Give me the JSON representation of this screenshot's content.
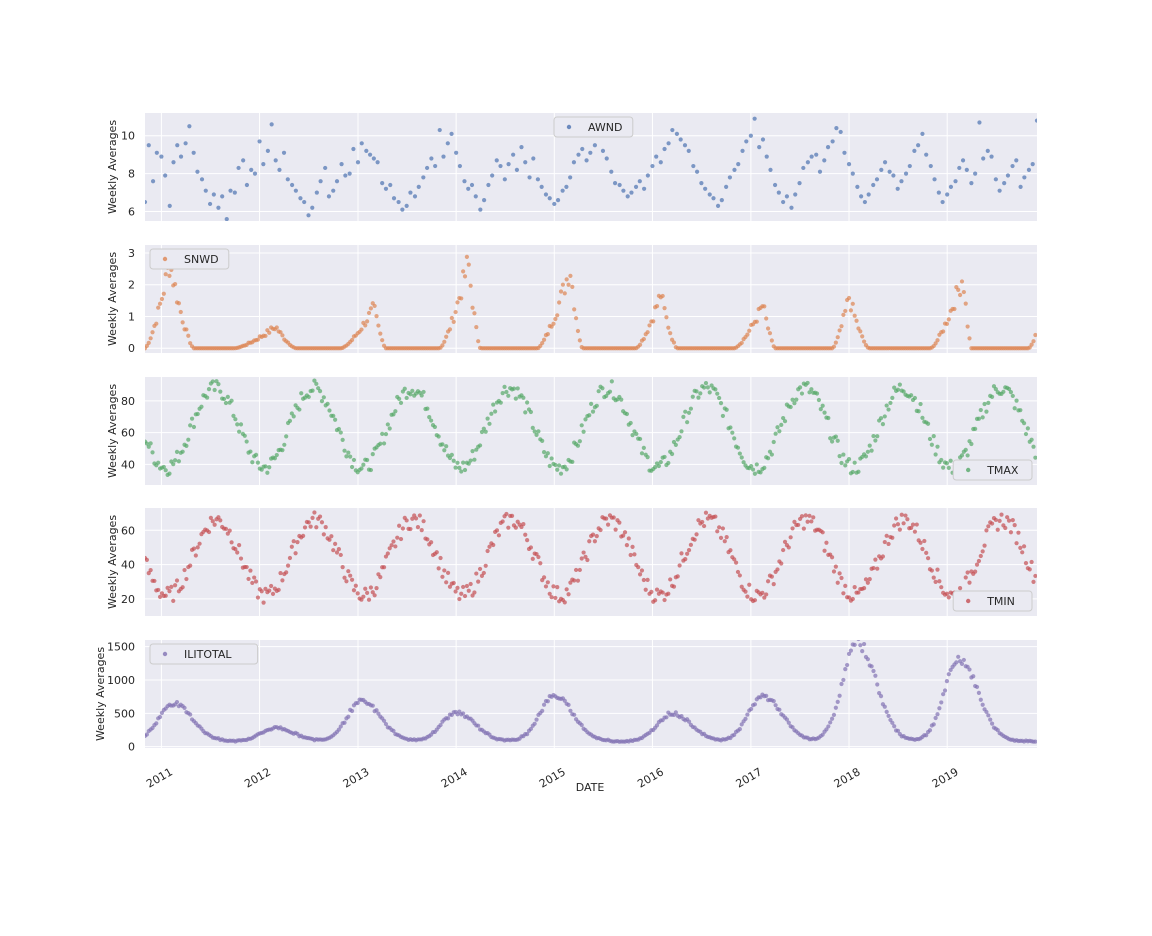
{
  "chart_data": {
    "type": "scatter",
    "xlabel": "DATE",
    "x_range": [
      "2010-11-01",
      "2019-12-01"
    ],
    "x_ticks": [
      "2011",
      "2012",
      "2013",
      "2014",
      "2015",
      "2016",
      "2017",
      "2018",
      "2019"
    ],
    "grid": true,
    "marker": "dot",
    "panels": [
      {
        "series": "AWND",
        "color": "#4c72b0",
        "ylabel": "Weekly Averages",
        "ylim": [
          5.5,
          11.2
        ],
        "yticks": [
          "6",
          "8",
          "10"
        ],
        "legend": "top-center",
        "points": [
          [
            "2010-11-01",
            6.5
          ],
          [
            "2010-11-15",
            9.5
          ],
          [
            "2010-12-01",
            7.6
          ],
          [
            "2010-12-15",
            9.1
          ],
          [
            "2011-01-01",
            8.9
          ],
          [
            "2011-01-15",
            7.9
          ],
          [
            "2011-02-01",
            6.3
          ],
          [
            "2011-02-15",
            8.6
          ],
          [
            "2011-03-01",
            9.5
          ],
          [
            "2011-03-15",
            8.9
          ],
          [
            "2011-04-01",
            9.6
          ],
          [
            "2011-04-15",
            10.5
          ],
          [
            "2011-05-01",
            9.1
          ],
          [
            "2011-05-15",
            8.1
          ],
          [
            "2011-06-01",
            7.7
          ],
          [
            "2011-06-15",
            7.1
          ],
          [
            "2011-07-01",
            6.4
          ],
          [
            "2011-07-15",
            6.9
          ],
          [
            "2011-08-01",
            6.2
          ],
          [
            "2011-08-15",
            6.8
          ],
          [
            "2011-09-01",
            5.6
          ],
          [
            "2011-09-15",
            7.1
          ],
          [
            "2011-10-01",
            7.0
          ],
          [
            "2011-10-15",
            8.3
          ],
          [
            "2011-11-01",
            8.7
          ],
          [
            "2011-11-15",
            7.4
          ],
          [
            "2011-12-01",
            8.2
          ],
          [
            "2011-12-15",
            8.0
          ],
          [
            "2012-01-01",
            9.7
          ],
          [
            "2012-01-15",
            8.5
          ],
          [
            "2012-02-01",
            9.2
          ],
          [
            "2012-02-15",
            10.6
          ],
          [
            "2012-03-01",
            8.7
          ],
          [
            "2012-03-15",
            8.2
          ],
          [
            "2012-04-01",
            9.1
          ],
          [
            "2012-04-15",
            7.7
          ],
          [
            "2012-05-01",
            7.4
          ],
          [
            "2012-05-15",
            7.1
          ],
          [
            "2012-06-01",
            6.7
          ],
          [
            "2012-06-15",
            6.5
          ],
          [
            "2012-07-01",
            5.8
          ],
          [
            "2012-07-15",
            6.2
          ],
          [
            "2012-08-01",
            7.0
          ],
          [
            "2012-08-15",
            7.6
          ],
          [
            "2012-09-01",
            8.3
          ],
          [
            "2012-09-15",
            6.8
          ],
          [
            "2012-10-01",
            7.1
          ],
          [
            "2012-10-15",
            7.6
          ],
          [
            "2012-11-01",
            8.5
          ],
          [
            "2012-11-15",
            7.9
          ],
          [
            "2012-12-01",
            8.0
          ],
          [
            "2012-12-15",
            9.3
          ],
          [
            "2013-01-01",
            8.6
          ],
          [
            "2013-01-15",
            9.6
          ],
          [
            "2013-02-01",
            9.2
          ],
          [
            "2013-02-15",
            9.0
          ],
          [
            "2013-03-01",
            8.8
          ],
          [
            "2013-03-15",
            8.6
          ],
          [
            "2013-04-01",
            7.5
          ],
          [
            "2013-04-15",
            7.2
          ],
          [
            "2013-05-01",
            7.4
          ],
          [
            "2013-05-15",
            6.7
          ],
          [
            "2013-06-01",
            6.5
          ],
          [
            "2013-06-15",
            6.1
          ],
          [
            "2013-07-01",
            6.3
          ],
          [
            "2013-07-15",
            7.0
          ],
          [
            "2013-08-01",
            6.8
          ],
          [
            "2013-08-15",
            7.3
          ],
          [
            "2013-09-01",
            7.8
          ],
          [
            "2013-09-15",
            8.3
          ],
          [
            "2013-10-01",
            8.8
          ],
          [
            "2013-10-15",
            8.4
          ],
          [
            "2013-11-01",
            10.3
          ],
          [
            "2013-11-15",
            8.9
          ],
          [
            "2013-12-01",
            9.6
          ],
          [
            "2013-12-15",
            10.1
          ],
          [
            "2014-01-01",
            9.1
          ],
          [
            "2014-01-15",
            8.4
          ],
          [
            "2014-02-01",
            7.6
          ],
          [
            "2014-02-15",
            7.2
          ],
          [
            "2014-03-01",
            7.4
          ],
          [
            "2014-03-15",
            6.8
          ],
          [
            "2014-04-01",
            6.1
          ],
          [
            "2014-04-15",
            6.6
          ],
          [
            "2014-05-01",
            7.4
          ],
          [
            "2014-05-15",
            7.9
          ],
          [
            "2014-06-01",
            8.7
          ],
          [
            "2014-06-15",
            8.4
          ],
          [
            "2014-07-01",
            7.7
          ],
          [
            "2014-07-15",
            8.5
          ],
          [
            "2014-08-01",
            9.0
          ],
          [
            "2014-08-15",
            8.2
          ],
          [
            "2014-09-01",
            9.4
          ],
          [
            "2014-09-15",
            8.6
          ],
          [
            "2014-10-01",
            7.8
          ],
          [
            "2014-10-15",
            8.8
          ],
          [
            "2014-11-01",
            7.7
          ],
          [
            "2014-11-15",
            7.3
          ],
          [
            "2014-12-01",
            6.9
          ],
          [
            "2014-12-15",
            6.7
          ],
          [
            "2015-01-01",
            6.4
          ],
          [
            "2015-01-15",
            6.6
          ],
          [
            "2015-02-01",
            7.1
          ],
          [
            "2015-02-15",
            7.3
          ],
          [
            "2015-03-01",
            7.8
          ],
          [
            "2015-03-15",
            8.6
          ],
          [
            "2015-04-01",
            9.0
          ],
          [
            "2015-04-15",
            9.3
          ],
          [
            "2015-05-01",
            8.7
          ],
          [
            "2015-05-15",
            9.1
          ],
          [
            "2015-06-01",
            9.5
          ],
          [
            "2015-06-15",
            10.7
          ],
          [
            "2015-07-01",
            9.2
          ],
          [
            "2015-07-15",
            8.8
          ],
          [
            "2015-08-01",
            8.1
          ],
          [
            "2015-08-15",
            7.5
          ],
          [
            "2015-09-01",
            7.4
          ],
          [
            "2015-09-15",
            7.1
          ],
          [
            "2015-10-01",
            6.8
          ],
          [
            "2015-10-15",
            7.0
          ],
          [
            "2015-11-01",
            7.3
          ],
          [
            "2015-11-15",
            7.6
          ],
          [
            "2015-12-01",
            7.2
          ],
          [
            "2015-12-15",
            7.9
          ],
          [
            "2016-01-01",
            8.4
          ],
          [
            "2016-01-15",
            8.9
          ],
          [
            "2016-02-01",
            8.6
          ],
          [
            "2016-02-15",
            9.3
          ],
          [
            "2016-03-01",
            9.6
          ],
          [
            "2016-03-15",
            10.3
          ],
          [
            "2016-04-01",
            10.1
          ],
          [
            "2016-04-15",
            9.8
          ],
          [
            "2016-05-01",
            9.5
          ],
          [
            "2016-05-15",
            9.2
          ],
          [
            "2016-06-01",
            8.4
          ],
          [
            "2016-06-15",
            8.1
          ],
          [
            "2016-07-01",
            7.5
          ],
          [
            "2016-07-15",
            7.2
          ],
          [
            "2016-08-01",
            6.9
          ],
          [
            "2016-08-15",
            6.7
          ],
          [
            "2016-09-01",
            6.3
          ],
          [
            "2016-09-15",
            6.6
          ],
          [
            "2016-10-01",
            7.3
          ],
          [
            "2016-10-15",
            7.8
          ],
          [
            "2016-11-01",
            8.2
          ],
          [
            "2016-11-15",
            8.5
          ],
          [
            "2016-12-01",
            9.2
          ],
          [
            "2016-12-15",
            9.7
          ],
          [
            "2017-01-01",
            10.0
          ],
          [
            "2017-01-15",
            10.9
          ],
          [
            "2017-02-01",
            9.4
          ],
          [
            "2017-02-15",
            9.8
          ],
          [
            "2017-03-01",
            8.9
          ],
          [
            "2017-03-15",
            8.2
          ],
          [
            "2017-04-01",
            7.4
          ],
          [
            "2017-04-15",
            7.0
          ],
          [
            "2017-05-01",
            6.5
          ],
          [
            "2017-05-15",
            6.8
          ],
          [
            "2017-06-01",
            6.2
          ],
          [
            "2017-06-15",
            6.9
          ],
          [
            "2017-07-01",
            7.5
          ],
          [
            "2017-07-15",
            8.3
          ],
          [
            "2017-08-01",
            8.6
          ],
          [
            "2017-08-15",
            8.9
          ],
          [
            "2017-09-01",
            9.0
          ],
          [
            "2017-09-15",
            8.1
          ],
          [
            "2017-10-01",
            8.7
          ],
          [
            "2017-10-15",
            9.4
          ],
          [
            "2017-11-01",
            9.7
          ],
          [
            "2017-11-15",
            10.4
          ],
          [
            "2017-12-01",
            10.2
          ],
          [
            "2017-12-15",
            9.1
          ],
          [
            "2018-01-01",
            8.5
          ],
          [
            "2018-01-15",
            8.0
          ],
          [
            "2018-02-01",
            7.3
          ],
          [
            "2018-02-15",
            6.8
          ],
          [
            "2018-03-01",
            6.5
          ],
          [
            "2018-03-15",
            6.9
          ],
          [
            "2018-04-01",
            7.4
          ],
          [
            "2018-04-15",
            7.7
          ],
          [
            "2018-05-01",
            8.2
          ],
          [
            "2018-05-15",
            8.6
          ],
          [
            "2018-06-01",
            8.1
          ],
          [
            "2018-06-15",
            7.9
          ],
          [
            "2018-07-01",
            7.2
          ],
          [
            "2018-07-15",
            7.6
          ],
          [
            "2018-08-01",
            8.0
          ],
          [
            "2018-08-15",
            8.4
          ],
          [
            "2018-09-01",
            9.2
          ],
          [
            "2018-09-15",
            9.5
          ],
          [
            "2018-10-01",
            10.1
          ],
          [
            "2018-10-15",
            9.0
          ],
          [
            "2018-11-01",
            8.4
          ],
          [
            "2018-11-15",
            7.7
          ],
          [
            "2018-12-01",
            7.0
          ],
          [
            "2018-12-15",
            6.5
          ],
          [
            "2019-01-01",
            6.9
          ],
          [
            "2019-01-15",
            7.3
          ],
          [
            "2019-02-01",
            7.6
          ],
          [
            "2019-02-15",
            8.3
          ],
          [
            "2019-03-01",
            8.7
          ],
          [
            "2019-03-15",
            8.2
          ],
          [
            "2019-04-01",
            7.5
          ],
          [
            "2019-04-15",
            8.0
          ],
          [
            "2019-05-01",
            10.7
          ],
          [
            "2019-05-15",
            8.8
          ],
          [
            "2019-06-01",
            9.2
          ],
          [
            "2019-06-15",
            8.9
          ],
          [
            "2019-07-01",
            7.7
          ],
          [
            "2019-07-15",
            7.1
          ],
          [
            "2019-08-01",
            7.5
          ],
          [
            "2019-08-15",
            7.9
          ],
          [
            "2019-09-01",
            8.4
          ],
          [
            "2019-09-15",
            8.7
          ],
          [
            "2019-10-01",
            7.3
          ],
          [
            "2019-10-15",
            7.8
          ],
          [
            "2019-11-01",
            8.2
          ],
          [
            "2019-11-15",
            8.5
          ],
          [
            "2019-12-01",
            10.8
          ]
        ]
      },
      {
        "series": "SNWD",
        "color": "#dd8452",
        "ylabel": "Weekly Averages",
        "ylim": [
          -0.15,
          3.25
        ],
        "yticks": [
          "0",
          "1",
          "2",
          "3"
        ],
        "legend": "top-left",
        "seasons": [
          {
            "start": "2010-11-01",
            "peak": "2011-02-01",
            "end": "2011-05-01",
            "max": 3.2
          },
          {
            "start": "2011-10-01",
            "peak": "2012-03-01",
            "end": "2012-05-15",
            "max": 0.8
          },
          {
            "start": "2012-11-01",
            "peak": "2013-03-01",
            "end": "2013-04-15",
            "max": 1.5
          },
          {
            "start": "2013-11-01",
            "peak": "2014-02-15",
            "end": "2014-04-01",
            "max": 3.2
          },
          {
            "start": "2014-11-01",
            "peak": "2015-03-01",
            "end": "2015-04-15",
            "max": 3.0
          },
          {
            "start": "2015-11-01",
            "peak": "2016-02-01",
            "end": "2016-04-01",
            "max": 2.0
          },
          {
            "start": "2016-11-01",
            "peak": "2017-02-15",
            "end": "2017-04-01",
            "max": 1.6
          },
          {
            "start": "2017-11-01",
            "peak": "2018-01-01",
            "end": "2018-03-15",
            "max": 1.9
          },
          {
            "start": "2018-11-01",
            "peak": "2019-03-01",
            "end": "2019-04-01",
            "max": 2.7
          },
          {
            "start": "2019-11-01",
            "peak": "2019-12-01",
            "end": "2019-12-01",
            "max": 0.6
          }
        ]
      },
      {
        "series": "TMAX",
        "color": "#55a868",
        "ylabel": "Weekly Averages",
        "ylim": [
          27,
          95
        ],
        "yticks": [
          "40",
          "60",
          "80"
        ],
        "legend": "bottom-right",
        "seasonal": {
          "mean": 63,
          "amplitude": 25,
          "peak_day": 200
        }
      },
      {
        "series": "TMIN",
        "color": "#c44e52",
        "ylabel": "Weekly Averages",
        "ylim": [
          10,
          73
        ],
        "yticks": [
          "20",
          "40",
          "60"
        ],
        "legend": "bottom-right",
        "seasonal": {
          "mean": 44,
          "amplitude": 22,
          "peak_day": 205
        }
      },
      {
        "series": "ILITOTAL",
        "color": "#8172b3",
        "ylabel": "Weekly Averages",
        "ylim": [
          -20,
          1600
        ],
        "yticks": [
          "0",
          "500",
          "1000",
          "1500"
        ],
        "legend": "top-left",
        "seasons": [
          {
            "peak": "2011-02-15",
            "max": 650,
            "base": 80
          },
          {
            "peak": "2012-03-01",
            "max": 280,
            "base": 80
          },
          {
            "peak": "2013-01-15",
            "max": 680,
            "base": 80
          },
          {
            "peak": "2014-01-01",
            "max": 510,
            "base": 80
          },
          {
            "peak": "2015-01-01",
            "max": 760,
            "base": 80
          },
          {
            "peak": "2016-03-15",
            "max": 500,
            "base": 80
          },
          {
            "peak": "2017-02-15",
            "max": 760,
            "base": 80
          },
          {
            "peak": "2018-02-01",
            "max": 1560,
            "base": 80
          },
          {
            "peak": "2019-02-15",
            "max": 1310,
            "base": 80
          }
        ]
      }
    ]
  }
}
